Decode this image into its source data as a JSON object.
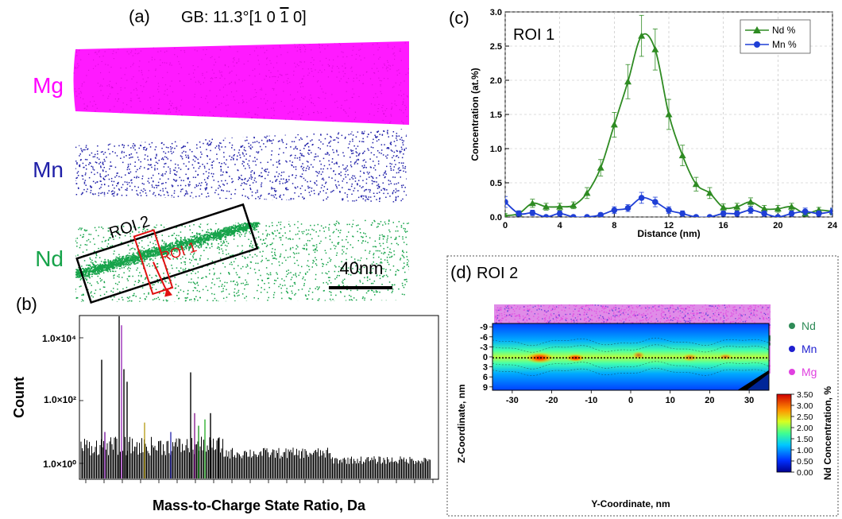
{
  "panel_a": {
    "label": "(a)",
    "title_prefix": "GB: 11.3°[1 0 ",
    "title_bar_digit": "1",
    "title_suffix": " 0]",
    "rows": [
      {
        "element": "Mg",
        "color": "#ff00ff"
      },
      {
        "element": "Mn",
        "color": "#1f1fa8"
      },
      {
        "element": "Nd",
        "color": "#16a34a"
      }
    ],
    "roi_outer_label": "ROI 2",
    "roi_inner_label": "ROI 1",
    "scale_bar_label": "40nm"
  },
  "panel_b": {
    "label": "(b)",
    "xlabel": "Mass-to-Charge State Ratio, Da",
    "ylabel": "Count",
    "y_ticks": [
      "1.0×10⁴",
      "1.0×10²",
      "1.0×10⁰"
    ]
  },
  "panel_c": {
    "label": "(c)",
    "roi_label": "ROI 1",
    "chart_data": {
      "type": "line",
      "xlabel": "Distance (nm)",
      "ylabel": "Concentration (at.%)",
      "xlim": [
        0,
        24
      ],
      "ylim": [
        0,
        3.0
      ],
      "x_ticks": [
        "0",
        "4",
        "8",
        "12",
        "16",
        "20",
        "24"
      ],
      "y_ticks": [
        "0.0",
        "0.5",
        "1.0",
        "1.5",
        "2.0",
        "2.5",
        "3.0"
      ],
      "legend_position": "top-right",
      "grid": true,
      "series": [
        {
          "name": "Nd %",
          "color": "#2e8b22",
          "marker": "triangle",
          "x": [
            0,
            1,
            2,
            3,
            4,
            5,
            6,
            7,
            8,
            9,
            10,
            11,
            12,
            13,
            14,
            15,
            16,
            17,
            18,
            19,
            20,
            21,
            22,
            23,
            24
          ],
          "y": [
            0.02,
            0.05,
            0.2,
            0.15,
            0.15,
            0.17,
            0.35,
            0.72,
            1.35,
            1.98,
            2.65,
            2.45,
            1.5,
            0.9,
            0.48,
            0.35,
            0.14,
            0.15,
            0.22,
            0.12,
            0.12,
            0.15,
            0.05,
            0.1,
            0.08
          ],
          "err": [
            0.03,
            0.04,
            0.06,
            0.05,
            0.05,
            0.05,
            0.08,
            0.12,
            0.18,
            0.25,
            0.3,
            0.3,
            0.22,
            0.15,
            0.1,
            0.08,
            0.05,
            0.05,
            0.06,
            0.05,
            0.05,
            0.05,
            0.04,
            0.04,
            0.04
          ]
        },
        {
          "name": "Mn %",
          "color": "#1f3fd6",
          "marker": "circle",
          "x": [
            0,
            1,
            2,
            3,
            4,
            5,
            6,
            7,
            8,
            9,
            10,
            11,
            12,
            13,
            14,
            15,
            16,
            17,
            18,
            19,
            20,
            21,
            22,
            23,
            24
          ],
          "y": [
            0.22,
            0.05,
            0.06,
            0.0,
            0.05,
            0.0,
            0.0,
            0.03,
            0.1,
            0.13,
            0.28,
            0.22,
            0.1,
            0.05,
            0.0,
            0.0,
            0.05,
            0.05,
            0.1,
            0.05,
            0.0,
            0.05,
            0.08,
            0.05,
            0.08
          ],
          "err": [
            0.08,
            0.04,
            0.04,
            0.02,
            0.04,
            0.02,
            0.02,
            0.03,
            0.05,
            0.05,
            0.08,
            0.07,
            0.05,
            0.04,
            0.02,
            0.02,
            0.04,
            0.04,
            0.05,
            0.04,
            0.02,
            0.04,
            0.05,
            0.04,
            0.05
          ]
        }
      ]
    }
  },
  "panel_d": {
    "label": "(d)",
    "roi_label": "ROI 2",
    "legend": [
      {
        "name": "Nd",
        "color": "#2e8b57"
      },
      {
        "name": "Mn",
        "color": "#1f1fd0"
      },
      {
        "name": "Mg",
        "color": "#e040e0"
      }
    ],
    "heatmap": {
      "xlabel": "Y-Coordinate, nm",
      "ylabel": "Z-Coordinate, nm",
      "colorbar_label": "Nd Concentration, %",
      "x_ticks": [
        "-30",
        "-20",
        "-10",
        "0",
        "10",
        "20",
        "30"
      ],
      "y_ticks": [
        "-9",
        "-6",
        "-3",
        "0",
        "3",
        "6",
        "9"
      ],
      "colorbar_ticks": [
        "3.50",
        "3.00",
        "2.50",
        "2.00",
        "1.50",
        "1.00",
        "0.50",
        "0.00"
      ]
    }
  }
}
